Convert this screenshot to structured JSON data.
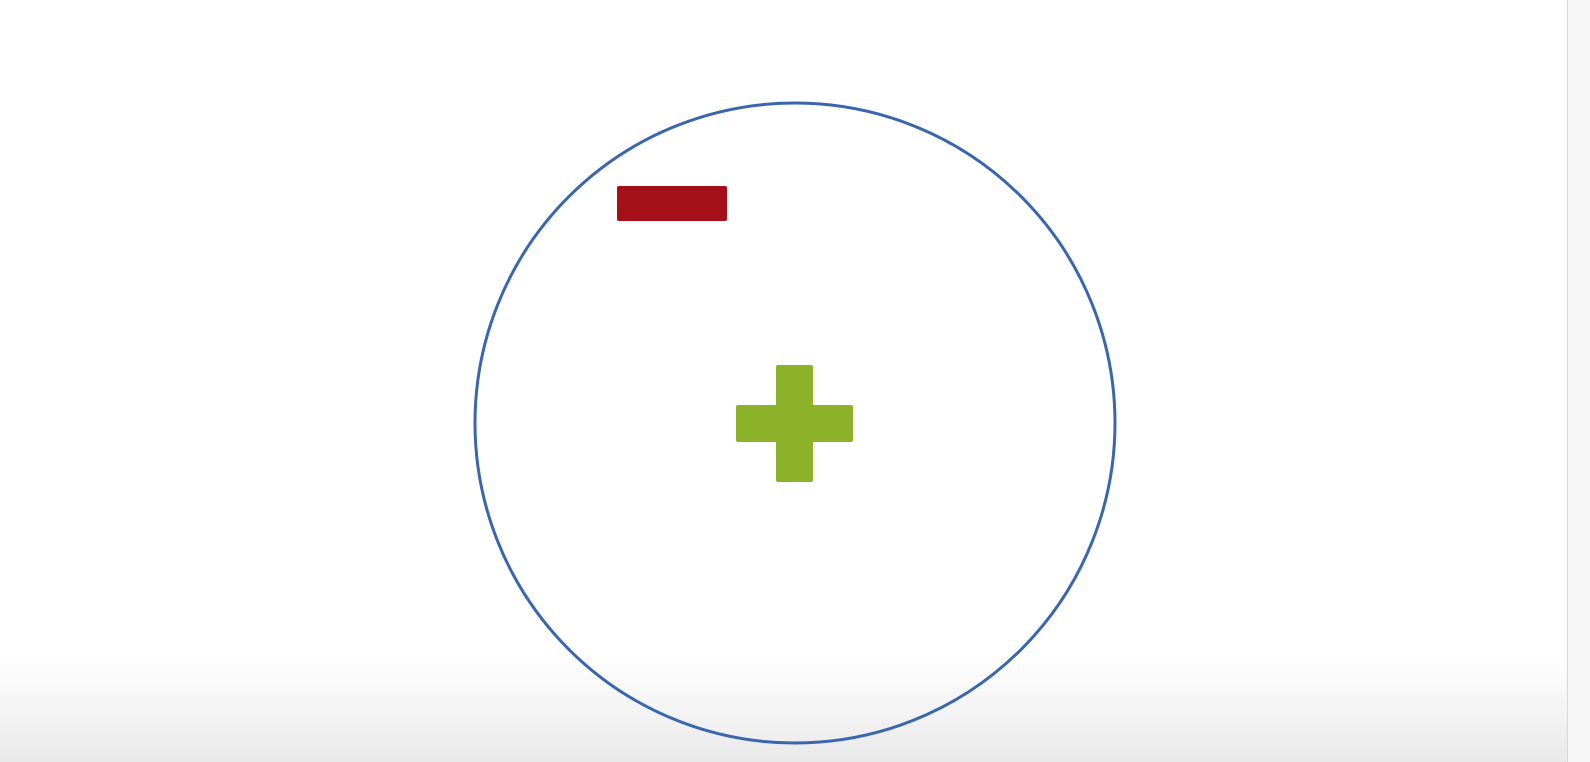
{
  "diagram": {
    "shapes": [
      {
        "role": "boundary",
        "icon": "circle-outline",
        "color": "#3a66ad"
      },
      {
        "role": "negative-charge",
        "icon": "minus-sign-icon",
        "color": "#a50f19"
      },
      {
        "role": "positive-charge",
        "icon": "plus-sign-icon",
        "color": "#8bb229"
      }
    ]
  }
}
